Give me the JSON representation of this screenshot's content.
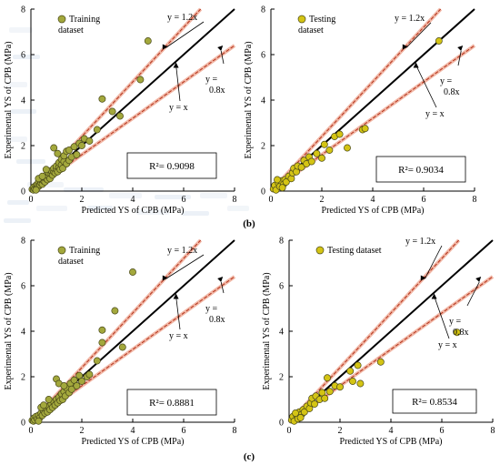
{
  "figure_labels": {
    "b": "(b)",
    "c": "(c)"
  },
  "chart_data": [
    {
      "id": "b-train",
      "type": "scatter",
      "xlabel": "Predicted YS of CPB (MPa)",
      "ylabel": "Experimental YS of CPB (MPa)",
      "xlim": [
        0,
        8
      ],
      "ylim": [
        0,
        8
      ],
      "xticks": [
        "0",
        "2",
        "4",
        "6",
        "8"
      ],
      "yticks": [
        "0",
        "2",
        "4",
        "6",
        "8"
      ],
      "legend": "Training dataset",
      "legend_lines": [
        "Training",
        "dataset"
      ],
      "r2_text": "R²= 0.9098",
      "label_upper": "y = 1.2x",
      "label_ideal": "y = x",
      "label_lower_lines": [
        "y =",
        "0.8x"
      ],
      "marker_color": "#a3a83c",
      "points": [
        [
          0.05,
          0.08
        ],
        [
          0.1,
          0.05
        ],
        [
          0.12,
          0.18
        ],
        [
          0.15,
          0.1
        ],
        [
          0.2,
          0.25
        ],
        [
          0.22,
          0.12
        ],
        [
          0.25,
          0.3
        ],
        [
          0.3,
          0.2
        ],
        [
          0.3,
          0.4
        ],
        [
          0.35,
          0.28
        ],
        [
          0.4,
          0.35
        ],
        [
          0.4,
          0.5
        ],
        [
          0.45,
          0.3
        ],
        [
          0.5,
          0.45
        ],
        [
          0.5,
          0.6
        ],
        [
          0.55,
          0.4
        ],
        [
          0.6,
          0.55
        ],
        [
          0.6,
          0.7
        ],
        [
          0.65,
          0.5
        ],
        [
          0.7,
          0.65
        ],
        [
          0.7,
          0.8
        ],
        [
          0.75,
          0.55
        ],
        [
          0.8,
          0.75
        ],
        [
          0.8,
          0.9
        ],
        [
          0.85,
          0.7
        ],
        [
          0.9,
          0.85
        ],
        [
          0.9,
          1.0
        ],
        [
          0.95,
          0.8
        ],
        [
          1.0,
          0.95
        ],
        [
          1.0,
          1.1
        ],
        [
          1.05,
          0.85
        ],
        [
          1.1,
          1.05
        ],
        [
          1.1,
          1.25
        ],
        [
          1.15,
          0.95
        ],
        [
          1.2,
          1.15
        ],
        [
          1.2,
          1.4
        ],
        [
          1.25,
          1.0
        ],
        [
          1.3,
          1.3
        ],
        [
          1.3,
          1.55
        ],
        [
          1.4,
          1.2
        ],
        [
          1.4,
          1.75
        ],
        [
          1.5,
          1.35
        ],
        [
          1.5,
          1.8
        ],
        [
          1.6,
          1.5
        ],
        [
          1.7,
          1.95
        ],
        [
          1.8,
          1.6
        ],
        [
          1.9,
          2.1
        ],
        [
          2.0,
          2.0
        ],
        [
          2.1,
          2.3
        ],
        [
          2.3,
          2.2
        ],
        [
          0.9,
          1.9
        ],
        [
          1.05,
          1.65
        ],
        [
          0.6,
          0.95
        ],
        [
          0.3,
          0.55
        ],
        [
          0.2,
          0.05
        ],
        [
          0.45,
          0.65
        ],
        [
          2.6,
          2.7
        ],
        [
          2.8,
          4.05
        ],
        [
          3.2,
          3.5
        ],
        [
          3.5,
          3.3
        ],
        [
          4.3,
          4.9
        ],
        [
          4.6,
          6.6
        ]
      ]
    },
    {
      "id": "b-test",
      "type": "scatter",
      "xlabel": "Predicted YS of CPB (MPa)",
      "ylabel": "Experimental YS of CPB (MPa)",
      "xlim": [
        0,
        8
      ],
      "ylim": [
        0,
        8
      ],
      "xticks": [
        "0",
        "2",
        "4",
        "6",
        "8"
      ],
      "yticks": [
        "0",
        "2",
        "4",
        "6",
        "8"
      ],
      "legend": "Testing dataset",
      "legend_lines": [
        "Testing",
        "dataset"
      ],
      "r2_text": "R²= 0.9034",
      "label_upper": "y = 1.2x",
      "label_ideal": "y = x",
      "label_lower_lines": [
        "y =",
        "0.8x"
      ],
      "marker_color": "#d4c414",
      "points": [
        [
          0.1,
          0.1
        ],
        [
          0.15,
          0.25
        ],
        [
          0.2,
          0.05
        ],
        [
          0.3,
          0.35
        ],
        [
          0.35,
          0.2
        ],
        [
          0.4,
          0.45
        ],
        [
          0.5,
          0.3
        ],
        [
          0.55,
          0.5
        ],
        [
          0.6,
          0.4
        ],
        [
          0.7,
          0.65
        ],
        [
          0.8,
          0.55
        ],
        [
          0.85,
          0.8
        ],
        [
          0.9,
          1.0
        ],
        [
          1.0,
          0.85
        ],
        [
          1.05,
          1.1
        ],
        [
          1.2,
          1.05
        ],
        [
          1.3,
          1.35
        ],
        [
          1.4,
          1.2
        ],
        [
          1.5,
          1.5
        ],
        [
          1.6,
          1.3
        ],
        [
          1.8,
          1.65
        ],
        [
          2.0,
          1.45
        ],
        [
          2.1,
          2.05
        ],
        [
          2.3,
          1.8
        ],
        [
          2.5,
          2.4
        ],
        [
          2.7,
          2.5
        ],
        [
          3.0,
          1.9
        ],
        [
          3.6,
          2.7
        ],
        [
          3.7,
          2.75
        ],
        [
          6.6,
          6.6
        ],
        [
          0.25,
          0.5
        ],
        [
          0.45,
          0.15
        ]
      ]
    },
    {
      "id": "c-train",
      "type": "scatter",
      "xlabel": "Predicted YS of CPB (MPa)",
      "ylabel": "Experimental YS of CPB (MPa)",
      "xlim": [
        0,
        8
      ],
      "ylim": [
        0,
        8
      ],
      "xticks": [
        "0",
        "2",
        "4",
        "6",
        "8"
      ],
      "yticks": [
        "0",
        "2",
        "4",
        "6",
        "8"
      ],
      "legend": "Training dataset",
      "legend_lines": [
        "Training",
        "dataset"
      ],
      "r2_text": "R²= 0.8881",
      "label_upper": "y = 1.2x",
      "label_ideal": "y = x",
      "label_lower_lines": [
        "y =",
        "0.8x"
      ],
      "marker_color": "#a3a83c",
      "points": [
        [
          0.05,
          0.08
        ],
        [
          0.1,
          0.05
        ],
        [
          0.12,
          0.18
        ],
        [
          0.15,
          0.1
        ],
        [
          0.2,
          0.25
        ],
        [
          0.25,
          0.15
        ],
        [
          0.3,
          0.3
        ],
        [
          0.35,
          0.2
        ],
        [
          0.4,
          0.4
        ],
        [
          0.45,
          0.3
        ],
        [
          0.5,
          0.5
        ],
        [
          0.55,
          0.4
        ],
        [
          0.6,
          0.6
        ],
        [
          0.65,
          0.45
        ],
        [
          0.7,
          0.7
        ],
        [
          0.75,
          0.55
        ],
        [
          0.8,
          0.8
        ],
        [
          0.85,
          0.65
        ],
        [
          0.9,
          0.9
        ],
        [
          0.95,
          0.75
        ],
        [
          1.0,
          1.0
        ],
        [
          1.05,
          0.85
        ],
        [
          1.1,
          1.1
        ],
        [
          1.15,
          0.95
        ],
        [
          1.2,
          1.25
        ],
        [
          1.25,
          1.0
        ],
        [
          1.3,
          1.35
        ],
        [
          1.35,
          1.15
        ],
        [
          1.4,
          1.5
        ],
        [
          1.5,
          1.3
        ],
        [
          1.55,
          1.7
        ],
        [
          1.6,
          1.45
        ],
        [
          1.7,
          1.85
        ],
        [
          1.8,
          1.6
        ],
        [
          1.9,
          2.05
        ],
        [
          2.0,
          1.8
        ],
        [
          2.2,
          2.0
        ],
        [
          2.3,
          2.1
        ],
        [
          1.0,
          1.9
        ],
        [
          1.1,
          1.7
        ],
        [
          0.7,
          1.0
        ],
        [
          0.4,
          0.65
        ],
        [
          0.3,
          0.05
        ],
        [
          0.5,
          0.75
        ],
        [
          1.3,
          1.6
        ],
        [
          2.8,
          3.5
        ],
        [
          2.8,
          4.05
        ],
        [
          3.3,
          4.9
        ],
        [
          3.6,
          3.3
        ],
        [
          4.0,
          6.6
        ],
        [
          2.6,
          2.7
        ]
      ]
    },
    {
      "id": "c-test",
      "type": "scatter",
      "xlabel": "Predicted YS of CPB (MPa)",
      "ylabel": "Experimental YS of CPB (MPa)",
      "xlim": [
        0,
        8
      ],
      "ylim": [
        0,
        8
      ],
      "xticks": [
        "0",
        "2",
        "4",
        "6",
        "8"
      ],
      "yticks": [
        "0",
        "2",
        "4",
        "6",
        "8"
      ],
      "legend": "Testing dataset",
      "legend_lines": [
        "Testing dataset"
      ],
      "r2_text": "R²= 0.8534",
      "label_upper": "y = 1.2x",
      "label_ideal": "y = x",
      "label_lower_lines": [
        "y =",
        "0.8x"
      ],
      "marker_color": "#d4c414",
      "points": [
        [
          0.1,
          0.1
        ],
        [
          0.15,
          0.25
        ],
        [
          0.2,
          0.05
        ],
        [
          0.3,
          0.3
        ],
        [
          0.35,
          0.15
        ],
        [
          0.4,
          0.45
        ],
        [
          0.5,
          0.35
        ],
        [
          0.55,
          0.55
        ],
        [
          0.6,
          0.45
        ],
        [
          0.7,
          0.7
        ],
        [
          0.8,
          0.6
        ],
        [
          0.85,
          0.85
        ],
        [
          0.9,
          1.05
        ],
        [
          1.0,
          0.8
        ],
        [
          1.05,
          1.15
        ],
        [
          1.2,
          1.0
        ],
        [
          1.3,
          1.3
        ],
        [
          1.4,
          1.05
        ],
        [
          1.5,
          1.95
        ],
        [
          1.6,
          1.35
        ],
        [
          1.8,
          1.6
        ],
        [
          2.0,
          1.55
        ],
        [
          2.4,
          2.25
        ],
        [
          2.5,
          1.8
        ],
        [
          2.7,
          2.5
        ],
        [
          2.8,
          1.7
        ],
        [
          3.6,
          2.65
        ],
        [
          6.6,
          3.95
        ],
        [
          0.25,
          0.4
        ],
        [
          0.45,
          0.2
        ]
      ]
    }
  ]
}
